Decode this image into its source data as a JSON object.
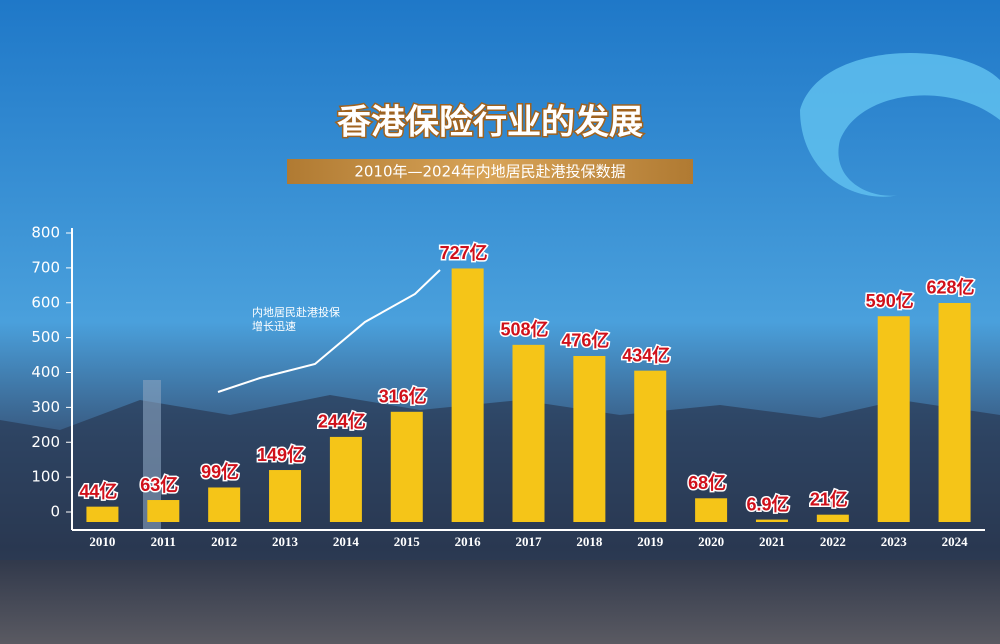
{
  "chart_data": {
    "type": "bar",
    "title": "香港保险行业的发展",
    "subtitle": "2010年—2024年内地居民赴港投保数据",
    "annotation": [
      "内地居民赴港投保",
      "增长迅速"
    ],
    "categories": [
      "2010",
      "2011",
      "2012",
      "2013",
      "2014",
      "2015",
      "2016",
      "2017",
      "2018",
      "2019",
      "2020",
      "2021",
      "2022",
      "2023",
      "2024"
    ],
    "values": [
      44,
      63,
      99,
      149,
      244,
      316,
      727,
      508,
      476,
      434,
      68,
      6.9,
      21,
      590,
      628
    ],
    "value_labels": [
      "44亿",
      "63亿",
      "99亿",
      "149亿",
      "244亿",
      "316亿",
      "727亿",
      "508亿",
      "476亿",
      "434亿",
      "68亿",
      "6.9亿",
      "21亿",
      "590亿",
      "628亿"
    ],
    "color": "#f5c518",
    "ylim": [
      0,
      800
    ],
    "yticks": [
      0,
      100,
      200,
      300,
      400,
      500,
      600,
      700,
      800
    ]
  }
}
